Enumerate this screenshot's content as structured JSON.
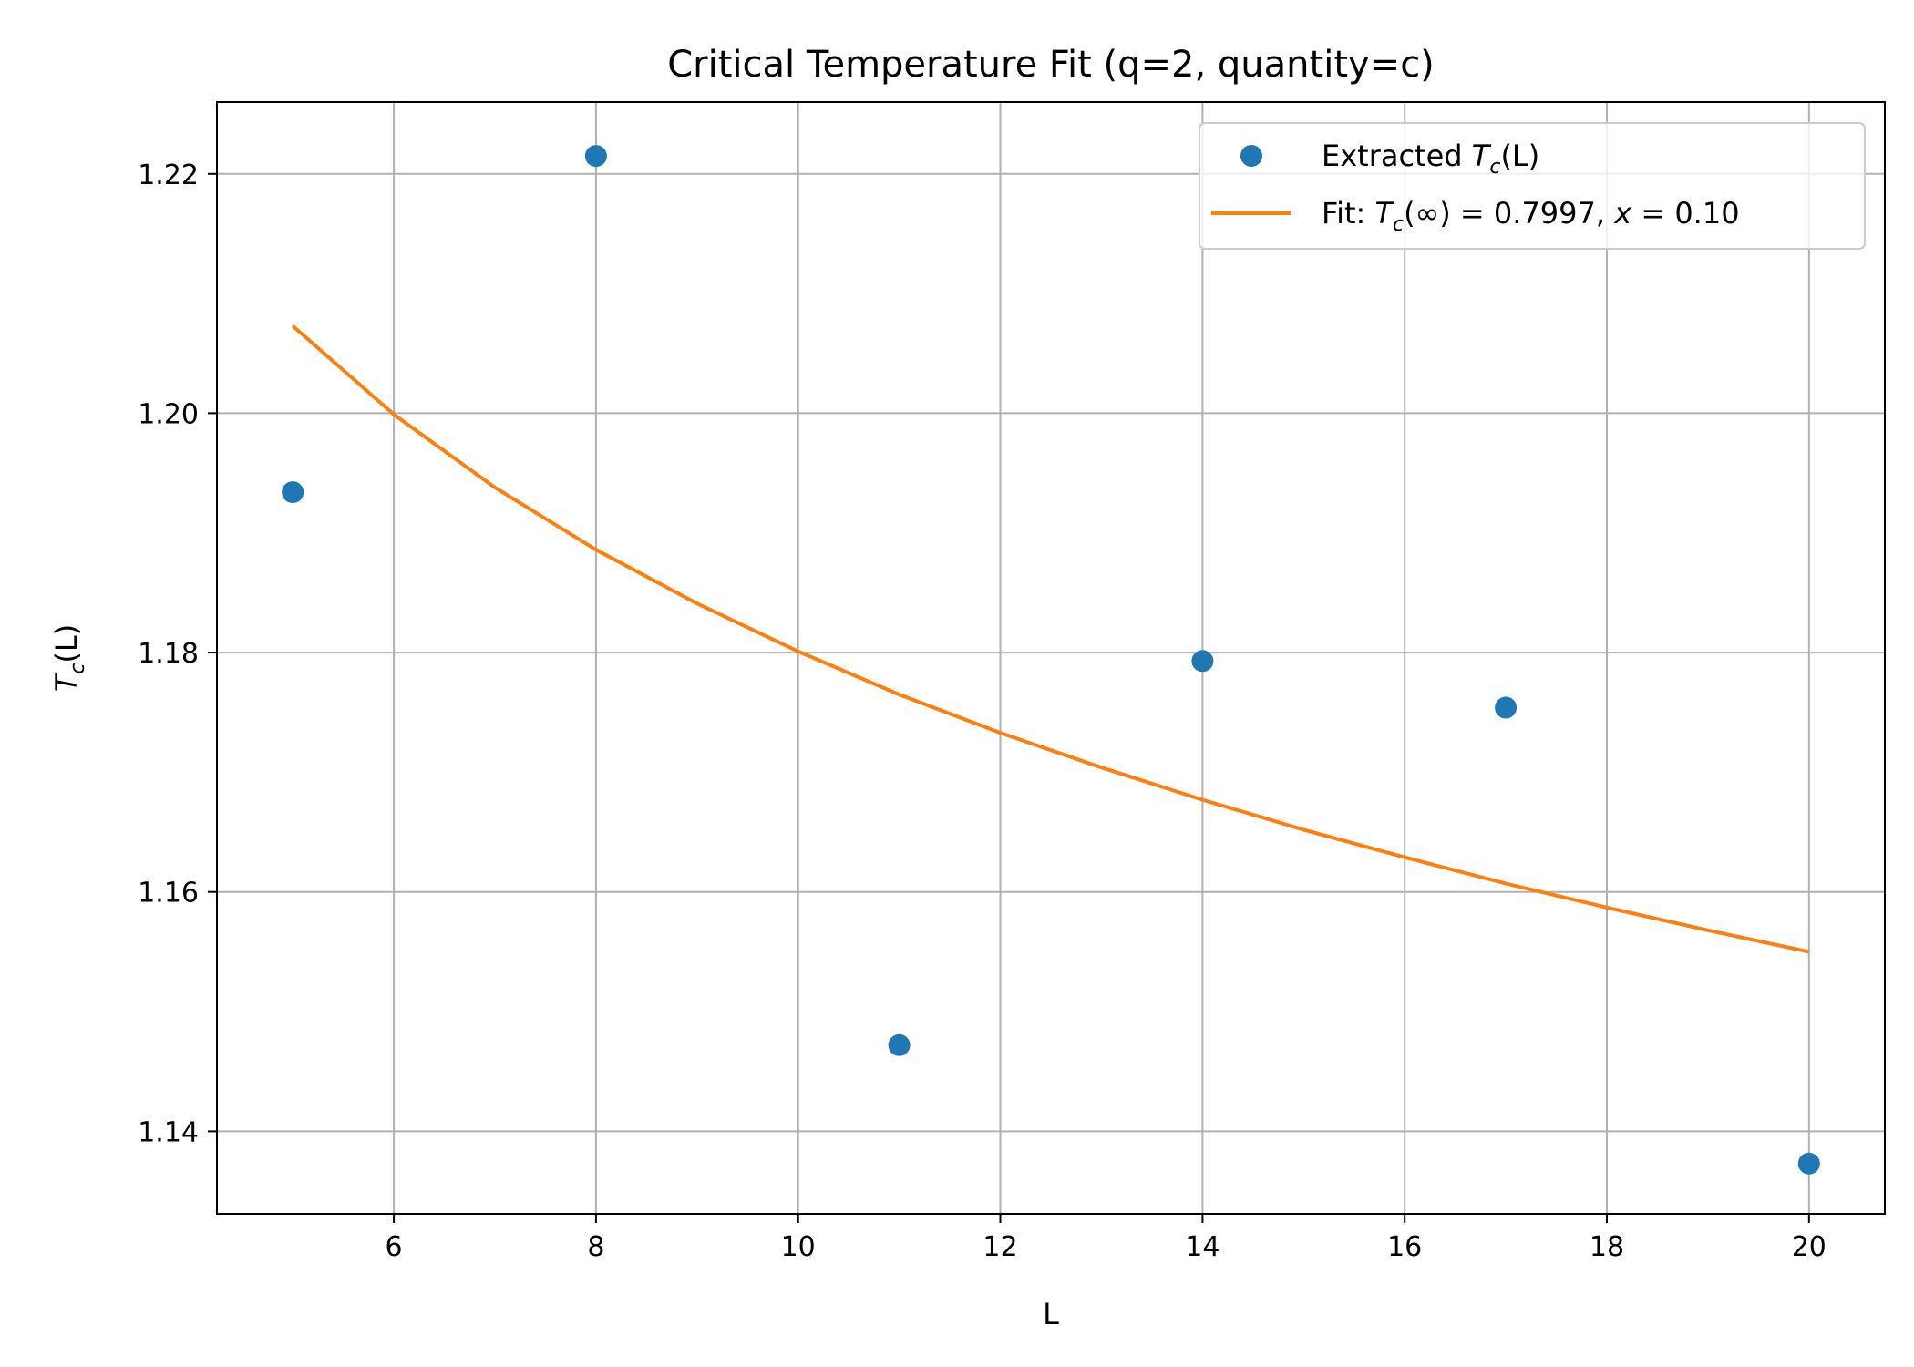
{
  "chart_data": {
    "type": "scatter",
    "title": "Critical Temperature Fit (q=2, quantity=c)",
    "xlabel": "L",
    "ylabel_base": "T",
    "ylabel_sub": "c",
    "ylabel_tail": "(L)",
    "xlim": [
      4.25,
      20.75
    ],
    "ylim": [
      1.1331,
      1.226
    ],
    "xticks": [
      6,
      8,
      10,
      12,
      14,
      16,
      18,
      20
    ],
    "xtick_labels": [
      "6",
      "8",
      "10",
      "12",
      "14",
      "16",
      "18",
      "20"
    ],
    "yticks": [
      1.14,
      1.16,
      1.18,
      1.2,
      1.22
    ],
    "ytick_labels": [
      "1.14",
      "1.16",
      "1.18",
      "1.20",
      "1.22"
    ],
    "grid": true,
    "legend_position": "top-right",
    "series": [
      {
        "name": "Extracted T_c(L)",
        "kind": "scatter",
        "color": "#1f77b4",
        "x": [
          5,
          8,
          11,
          14,
          17,
          20
        ],
        "y": [
          1.1934,
          1.2215,
          1.1472,
          1.1793,
          1.1754,
          1.1373
        ]
      },
      {
        "name": "Fit: T_c(∞) = 0.7997, x = 0.10",
        "kind": "line",
        "color": "#ff7f0e",
        "x": [
          5,
          6,
          7,
          8,
          9,
          10,
          11,
          12,
          13,
          14,
          15,
          16,
          17,
          18,
          19,
          20
        ],
        "y": [
          1.2073,
          1.1999,
          1.1938,
          1.1886,
          1.1841,
          1.1801,
          1.1765,
          1.1733,
          1.1704,
          1.1677,
          1.1652,
          1.1629,
          1.1607,
          1.1587,
          1.1568,
          1.155
        ]
      }
    ],
    "legend": {
      "entry1": {
        "pre": "Extracted ",
        "base": "T",
        "sub": "c",
        "tail": "(L)"
      },
      "entry2": {
        "pre": "Fit: ",
        "base": "T",
        "sub": "c",
        "mid": "(∞) = 0.7997, ",
        "var": "x",
        "post": " = 0.10"
      }
    }
  }
}
